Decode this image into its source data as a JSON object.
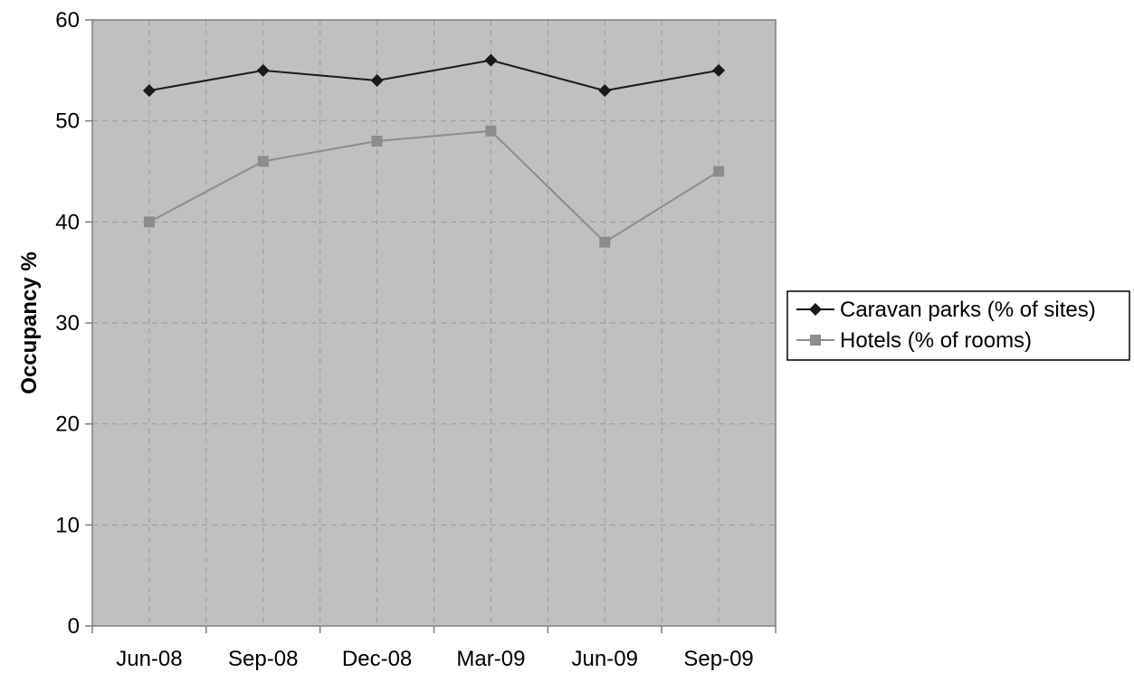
{
  "chart_data": {
    "type": "line",
    "title": "",
    "xlabel": "",
    "ylabel": "Occupancy %",
    "categories": [
      "Jun-08",
      "Sep-08",
      "Dec-08",
      "Mar-09",
      "Jun-09",
      "Sep-09"
    ],
    "ylim": [
      0,
      60
    ],
    "yticks": [
      0,
      10,
      20,
      30,
      40,
      50,
      60
    ],
    "grid": true,
    "legend_position": "right",
    "series": [
      {
        "name": "Caravan parks (% of sites)",
        "values": [
          53,
          55,
          54,
          56,
          53,
          55
        ],
        "color": "#1a1a1a",
        "marker": "diamond"
      },
      {
        "name": "Hotels (% of rooms)",
        "values": [
          40,
          46,
          48,
          49,
          38,
          45
        ],
        "color": "#8c8c8c",
        "marker": "square"
      }
    ],
    "colors": {
      "plot_background": "#c0c0c0",
      "gridline": "#9a9a9a",
      "axis": "#7f7f7f"
    }
  }
}
